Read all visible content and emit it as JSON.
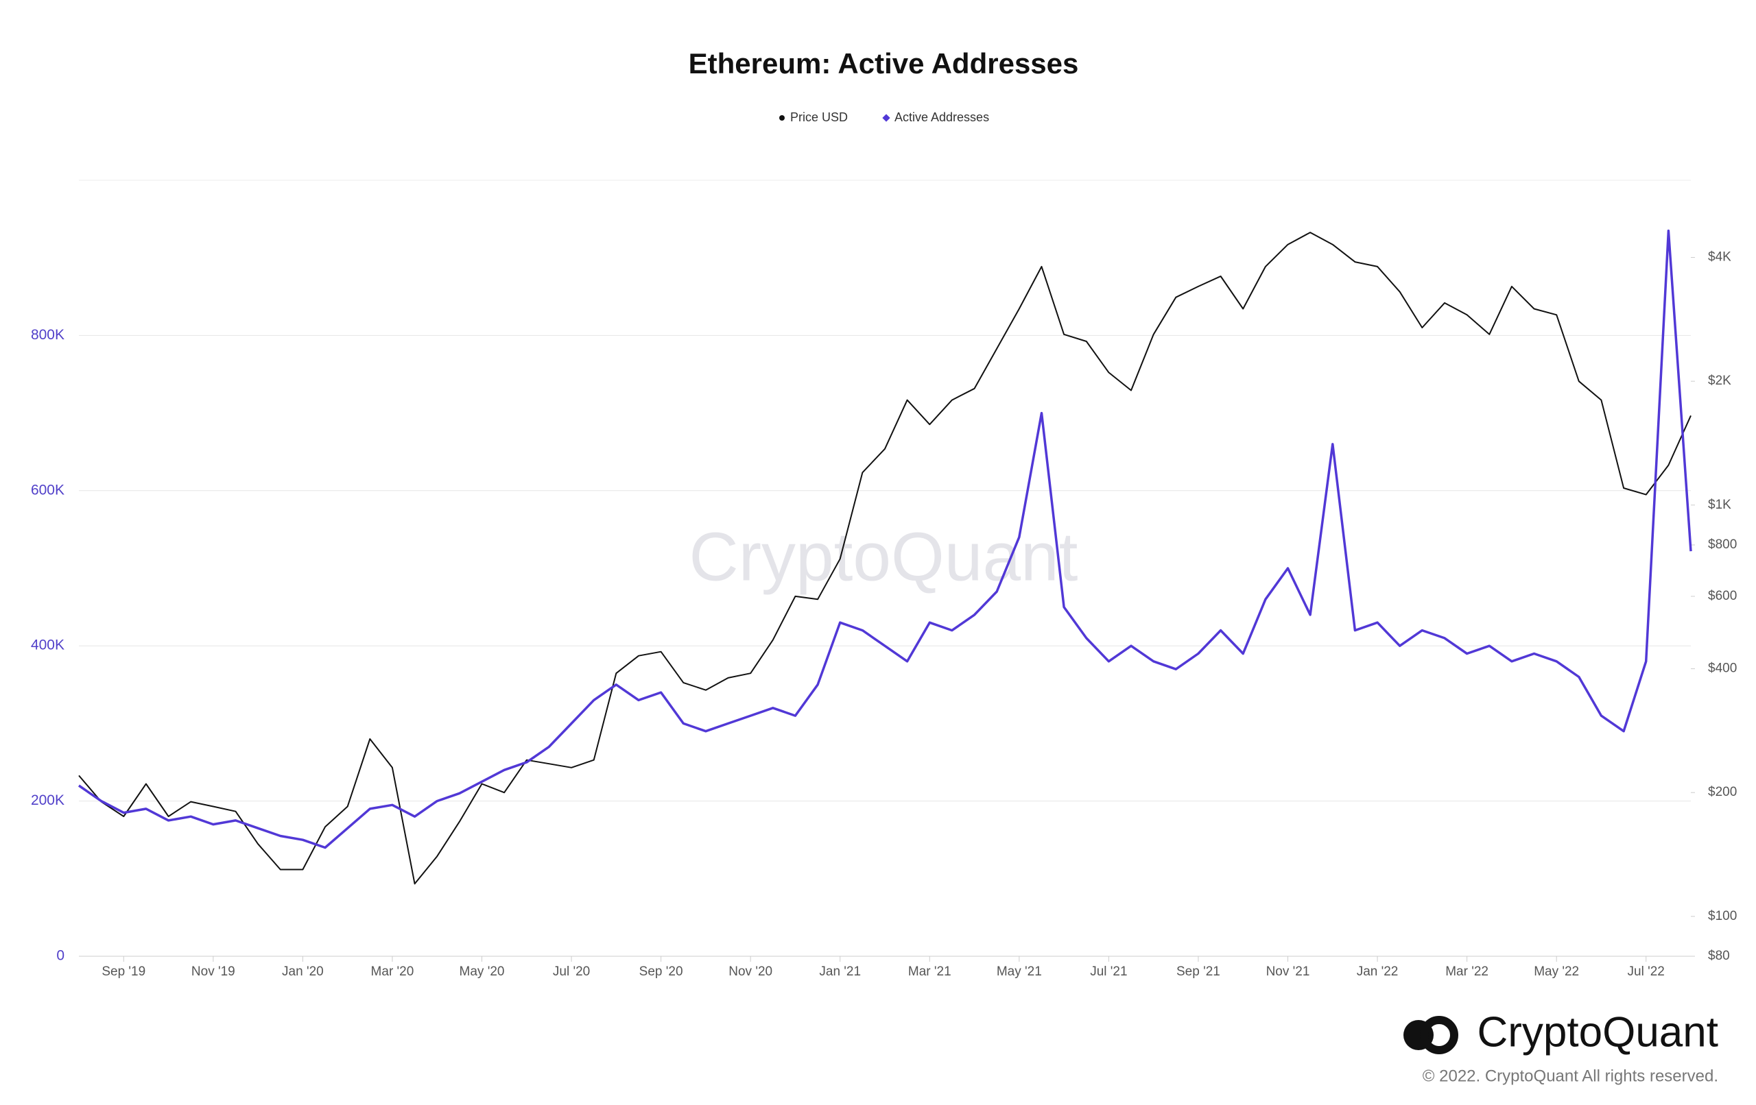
{
  "chart_data": {
    "type": "line",
    "title": "Ethereum: Active Addresses",
    "watermark": "CryptoQuant",
    "logo_text": "CryptoQuant",
    "copyright": "© 2022. CryptoQuant All rights reserved.",
    "categories": [
      null,
      null,
      "Sep '19",
      null,
      null,
      null,
      "Nov '19",
      null,
      null,
      null,
      "Jan '20",
      null,
      null,
      null,
      "Mar '20",
      null,
      null,
      null,
      "May '20",
      null,
      null,
      null,
      "Jul '20",
      null,
      null,
      null,
      "Sep '20",
      null,
      null,
      null,
      "Nov '20",
      null,
      null,
      null,
      "Jan '21",
      null,
      null,
      null,
      "Mar '21",
      null,
      null,
      null,
      "May '21",
      null,
      null,
      null,
      "Jul '21",
      null,
      null,
      null,
      "Sep '21",
      null,
      null,
      null,
      "Nov '21",
      null,
      null,
      null,
      "Jan '22",
      null,
      null,
      null,
      "Mar '22",
      null,
      null,
      null,
      "May '22",
      null,
      null,
      null,
      "Jul '22",
      null,
      null
    ],
    "series": [
      {
        "name": "Price USD",
        "color": "#111111",
        "axis": "y2",
        "values": [
          220,
          190,
          175,
          210,
          175,
          190,
          185,
          180,
          150,
          130,
          130,
          165,
          185,
          270,
          230,
          120,
          140,
          170,
          210,
          200,
          240,
          235,
          230,
          240,
          390,
          430,
          440,
          370,
          355,
          380,
          390,
          470,
          600,
          590,
          740,
          1200,
          1370,
          1800,
          1570,
          1800,
          1920,
          2400,
          3000,
          3800,
          2600,
          2500,
          2100,
          1900,
          2600,
          3200,
          3400,
          3600,
          3000,
          3800,
          4300,
          4600,
          4300,
          3900,
          3800,
          3300,
          2700,
          3100,
          2900,
          2600,
          3400,
          3000,
          2900,
          2000,
          1800,
          1100,
          1060,
          1250,
          1650
        ]
      },
      {
        "name": "Active Addresses",
        "color": "#5138d6",
        "values": [
          220000,
          200000,
          185000,
          190000,
          175000,
          180000,
          170000,
          175000,
          165000,
          155000,
          150000,
          140000,
          165000,
          190000,
          195000,
          180000,
          200000,
          210000,
          225000,
          240000,
          250000,
          270000,
          300000,
          330000,
          350000,
          330000,
          340000,
          300000,
          290000,
          300000,
          310000,
          320000,
          310000,
          350000,
          430000,
          420000,
          400000,
          380000,
          430000,
          420000,
          440000,
          470000,
          540000,
          700000,
          450000,
          410000,
          380000,
          400000,
          380000,
          370000,
          390000,
          420000,
          390000,
          460000,
          500000,
          440000,
          660000,
          420000,
          430000,
          400000,
          420000,
          410000,
          390000,
          400000,
          380000,
          390000,
          380000,
          360000,
          310000,
          290000,
          380000,
          935000,
          522000
        ]
      }
    ],
    "ylim": [
      0,
      1000000
    ],
    "yticks": [
      0,
      {
        "value": 200000,
        "label": "200K"
      },
      {
        "value": 400000,
        "label": "400K"
      },
      {
        "value": 600000,
        "label": "600K"
      },
      {
        "value": 800000,
        "label": "800K"
      }
    ],
    "y2lim": [
      80,
      6160
    ],
    "y2scale": "log",
    "y2ticks": [
      {
        "value": 80,
        "label": "$80"
      },
      {
        "value": 100,
        "label": "$100"
      },
      {
        "value": 200,
        "label": "$200"
      },
      {
        "value": 400,
        "label": "$400"
      },
      {
        "value": 600,
        "label": "$600"
      },
      {
        "value": 800,
        "label": "$800"
      },
      {
        "value": 1000,
        "label": "$1K"
      },
      {
        "value": 2000,
        "label": "$2K"
      },
      {
        "value": 4000,
        "label": "$4K"
      }
    ],
    "grid": true
  }
}
